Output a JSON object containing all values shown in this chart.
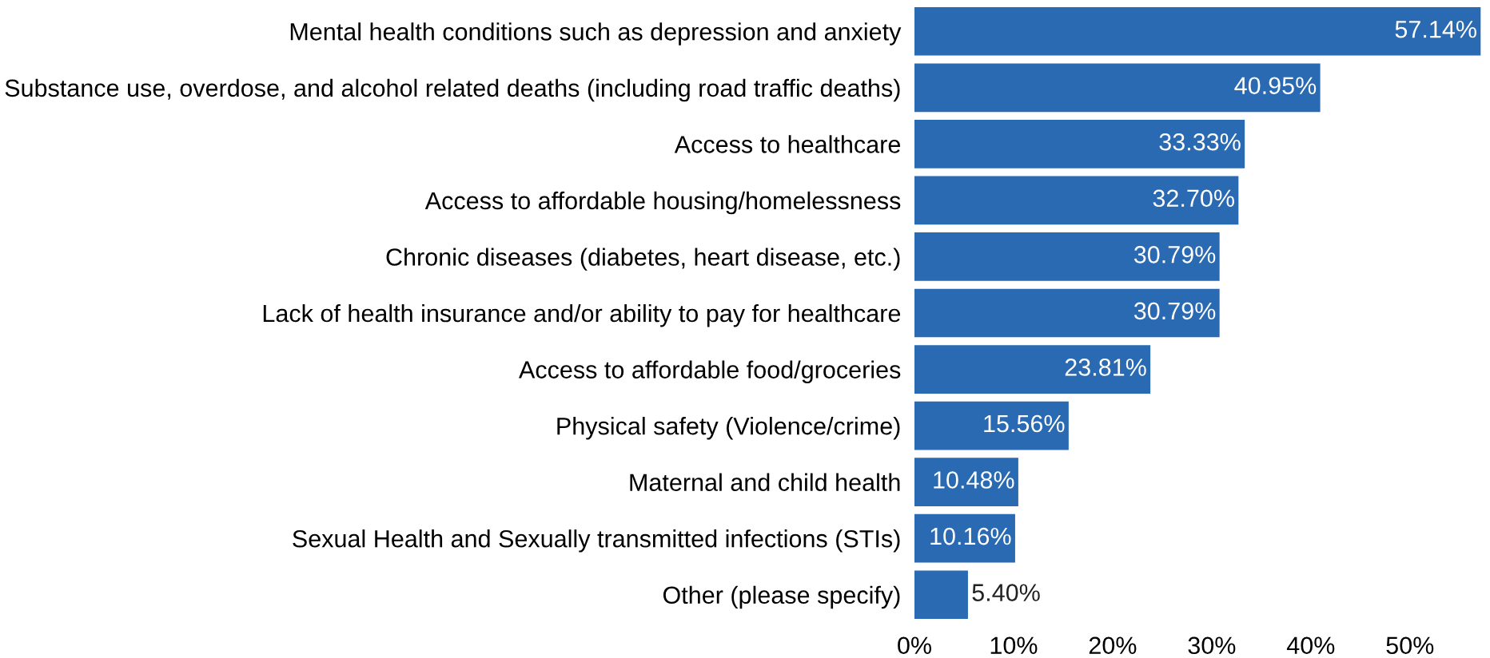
{
  "chart_data": {
    "type": "bar",
    "orientation": "horizontal",
    "color": "#2a6ab3",
    "categories": [
      "Mental health conditions such as depression and anxiety",
      "Substance use, overdose, and alcohol related deaths (including road traffic deaths)",
      "Access to healthcare",
      "Access to affordable housing/homelessness",
      "Chronic diseases (diabetes, heart disease, etc.)",
      "Lack of health insurance and/or ability to pay for healthcare",
      "Access to affordable food/groceries",
      "Physical safety (Violence/crime)",
      "Maternal and child health",
      "Sexual Health and Sexually transmitted infections (STIs)",
      "Other (please specify)"
    ],
    "values": [
      57.14,
      40.95,
      33.33,
      32.7,
      30.79,
      30.79,
      23.81,
      15.56,
      10.48,
      10.16,
      5.4
    ],
    "value_labels": [
      "57.14%",
      "40.95%",
      "33.33%",
      "32.70%",
      "30.79%",
      "30.79%",
      "23.81%",
      "15.56%",
      "10.48%",
      "10.16%",
      "5.40%"
    ],
    "xlim": [
      0,
      57.6
    ],
    "xticks": [
      {
        "value": 0,
        "label": "0%"
      },
      {
        "value": 10,
        "label": "10%"
      },
      {
        "value": 20,
        "label": "20%"
      },
      {
        "value": 30,
        "label": "30%"
      },
      {
        "value": 40,
        "label": "40%"
      },
      {
        "value": 50,
        "label": "50%"
      }
    ],
    "grid": false
  }
}
